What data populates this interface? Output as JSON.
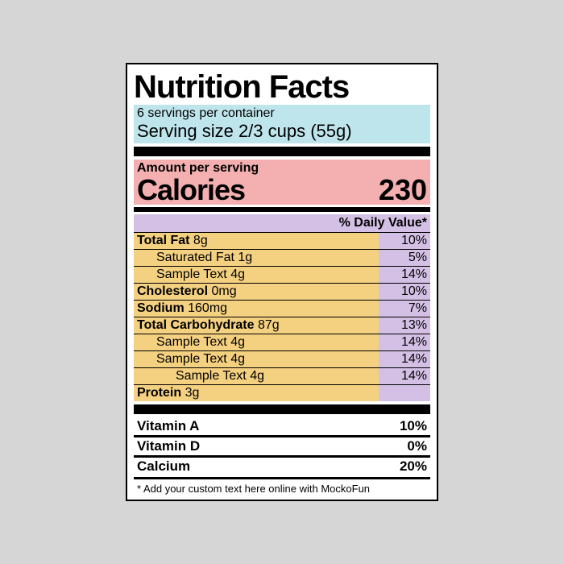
{
  "header": {
    "title": "Nutrition Facts",
    "servings_per": "6 servings per container",
    "serving_size": "Serving size 2/3 cups (55g)"
  },
  "calories": {
    "amount_per": "Amount per serving",
    "label": "Calories",
    "value": "230"
  },
  "dv_header": "% Daily Value*",
  "nutrients": [
    {
      "label": "Total Fat",
      "amount": "8g",
      "dv": "10%",
      "bold": true,
      "indent": 0
    },
    {
      "label": "Saturated Fat",
      "amount": "1g",
      "dv": "5%",
      "bold": false,
      "indent": 1
    },
    {
      "label": "Sample Text",
      "amount": "4g",
      "dv": "14%",
      "bold": false,
      "indent": 1
    },
    {
      "label": "Cholesterol",
      "amount": "0mg",
      "dv": "10%",
      "bold": true,
      "indent": 0
    },
    {
      "label": "Sodium",
      "amount": "160mg",
      "dv": "7%",
      "bold": true,
      "indent": 0
    },
    {
      "label": "Total Carbohydrate",
      "amount": "87g",
      "dv": "13%",
      "bold": true,
      "indent": 0
    },
    {
      "label": "Sample Text",
      "amount": "4g",
      "dv": "14%",
      "bold": false,
      "indent": 1
    },
    {
      "label": "Sample Text",
      "amount": "4g",
      "dv": "14%",
      "bold": false,
      "indent": 1
    },
    {
      "label": "Sample Text",
      "amount": "4g",
      "dv": "14%",
      "bold": false,
      "indent": 2
    },
    {
      "label": "Protein",
      "amount": "3g",
      "dv": "",
      "bold": true,
      "indent": 0
    }
  ],
  "vitamins": [
    {
      "label": "Vitamin A",
      "dv": "10%"
    },
    {
      "label": "Vitamin D",
      "dv": "0%"
    },
    {
      "label": "Calcium",
      "dv": "20%"
    }
  ],
  "footnote": "* Add your custom text here online with MockoFun",
  "colors": {
    "page_bg": "#d6d6d6",
    "panel_bg": "#ffffff",
    "border": "#000000",
    "servings_bg": "#bfe5ec",
    "calories_bg": "#f4b0b0",
    "nutrient_bg": "#f4d081",
    "dv_bg": "#d4c0e5"
  }
}
